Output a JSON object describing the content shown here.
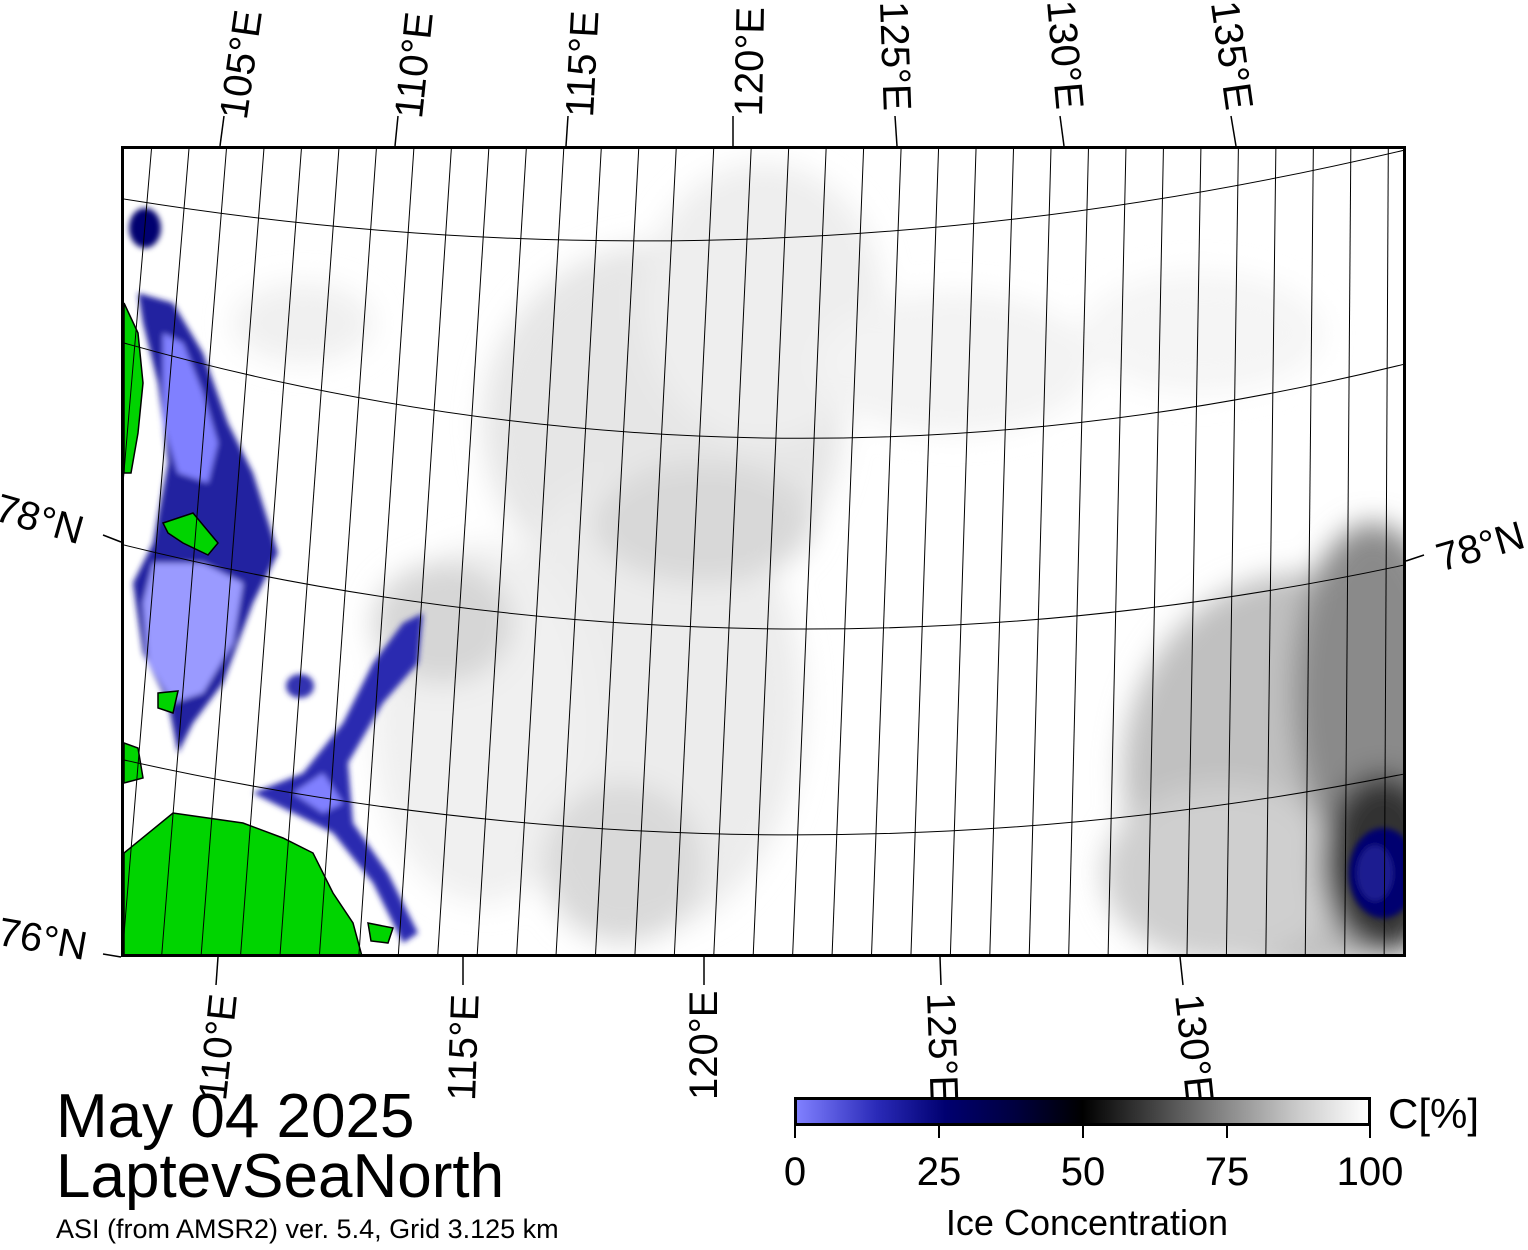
{
  "title": {
    "date": "May 04 2025",
    "region": "LaptevSeaNorth",
    "subtitle": "ASI (from AMSR2) ver. 5.4,  Grid 3.125 km"
  },
  "map": {
    "graticule": {
      "top_lon_labels": [
        "105°E",
        "110°E",
        "115°E",
        "120°E",
        "125°E",
        "130°E",
        "135°E"
      ],
      "bottom_lon_labels": [
        "110°E",
        "115°E",
        "120°E",
        "125°E",
        "130°E"
      ],
      "left_lat_labels": [
        "78°N",
        "76°N"
      ],
      "right_lat_labels": [
        "78°N"
      ]
    },
    "colors": {
      "land": "#00d400",
      "coast_mask": "#8c8c8c",
      "open_water": "#ffffff",
      "low_concentration": "#8080ff",
      "high_concentration": "#000070"
    }
  },
  "colorbar": {
    "unit_label": "C[%]",
    "title": "Ice Concentration",
    "ticks": [
      "0",
      "25",
      "50",
      "75",
      "100"
    ],
    "range": [
      0,
      100
    ]
  }
}
